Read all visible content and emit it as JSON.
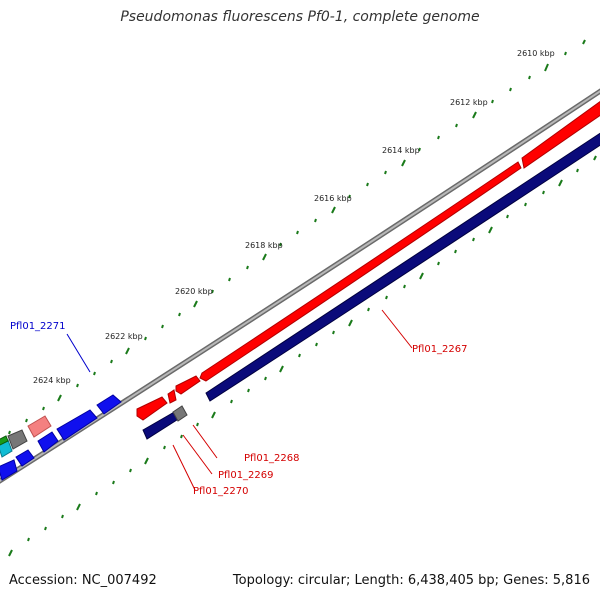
{
  "title": "Pseudomonas fluorescens Pf0-1, complete genome",
  "footer": {
    "accession": "Accession: NC_007492",
    "summary": "Topology: circular; Length: 6,438,405 bp; Genes: 5,816"
  },
  "ticks": [
    "2610 kbp",
    "2612 kbp",
    "2614 kbp",
    "2616 kbp",
    "2618 kbp",
    "2620 kbp",
    "2622 kbp",
    "2624 kbp"
  ],
  "gene_labels": {
    "pfl01_2271": "Pfl01_2271",
    "pfl01_2267": "Pfl01_2267",
    "pfl01_2268": "Pfl01_2268",
    "pfl01_2269": "Pfl01_2269",
    "pfl01_2270": "Pfl01_2270"
  },
  "colors": {
    "forward_gene": "#ff0000",
    "reverse_gene": "#0a0a7a",
    "blue_gene": "#1010ee",
    "tick": "#1a7a1a",
    "backbone": "#909090",
    "label_red": "#d40000",
    "label_blue": "#0000cc"
  }
}
